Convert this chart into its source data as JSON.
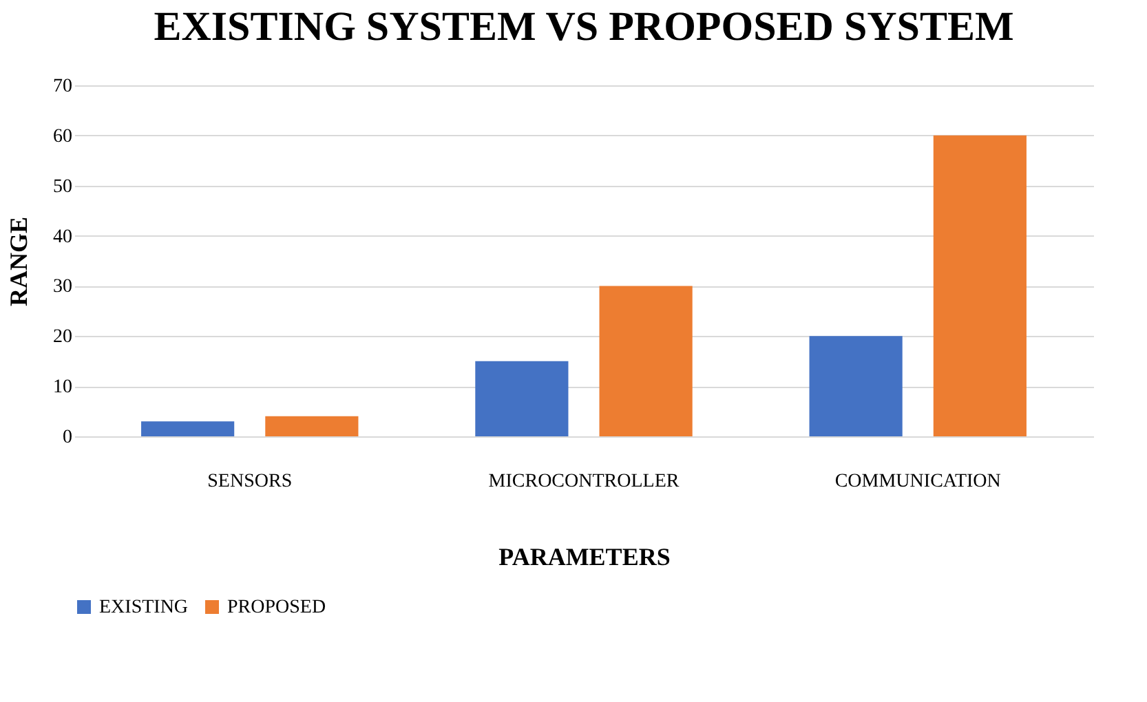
{
  "chart_data": {
    "type": "bar",
    "title": "EXISTING SYSTEM VS PROPOSED SYSTEM",
    "xlabel": "PARAMETERS",
    "ylabel": "RANGE",
    "categories": [
      "SENSORS",
      "MICROCONTROLLER",
      "COMMUNICATION"
    ],
    "series": [
      {
        "name": "EXISTING",
        "color": "#4472c4",
        "values": [
          3,
          15,
          20
        ]
      },
      {
        "name": "PROPOSED",
        "color": "#ed7d31",
        "values": [
          4,
          30,
          60
        ]
      }
    ],
    "ylim": [
      0,
      70
    ],
    "yticks": [
      0,
      10,
      20,
      30,
      40,
      50,
      60,
      70
    ],
    "grid": "y",
    "legend": "bottom"
  }
}
